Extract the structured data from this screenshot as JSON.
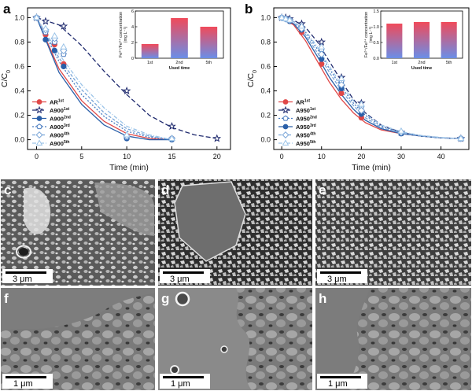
{
  "chart_data": [
    {
      "type": "line",
      "panel": "a",
      "xlabel": "Time (min)",
      "ylabel": "C/C",
      "ylabel_sub": "0",
      "xlim": [
        -1,
        21.5
      ],
      "ylim": [
        -0.08,
        1.08
      ],
      "xticks": [
        0,
        5,
        10,
        15,
        20
      ],
      "yticks": [
        0.0,
        0.2,
        0.4,
        0.6,
        0.8,
        1.0
      ],
      "legend_position": "bottom-left",
      "series": [
        {
          "name": "AR",
          "sup": "1st",
          "color": "#e04848",
          "marker": "circle",
          "dash": "",
          "x": [
            0,
            1,
            2,
            3,
            10,
            15
          ],
          "y": [
            1.0,
            0.86,
            0.78,
            0.62,
            0.02,
            0.01
          ],
          "fx": [
            0,
            2.5,
            5,
            7.5,
            10,
            12.5,
            15
          ],
          "fy": [
            1.0,
            0.58,
            0.32,
            0.15,
            0.05,
            0.01,
            0.0
          ]
        },
        {
          "name": "A900",
          "sup": "1st",
          "color": "#1f2a6e",
          "marker": "star",
          "dash": "6,3",
          "x": [
            0,
            1,
            3,
            10,
            15,
            20
          ],
          "y": [
            1.0,
            0.97,
            0.93,
            0.4,
            0.11,
            0.01
          ],
          "fx": [
            0,
            2.5,
            5,
            7.5,
            10,
            12.5,
            15,
            17.5,
            20
          ],
          "fy": [
            1.0,
            0.94,
            0.77,
            0.56,
            0.37,
            0.2,
            0.1,
            0.04,
            0.01
          ]
        },
        {
          "name": "A900",
          "sup": "2nd",
          "color": "#2a5fa8",
          "marker": "circle",
          "dash": "",
          "x": [
            0,
            1,
            2,
            3,
            10,
            15
          ],
          "y": [
            1.0,
            0.82,
            0.73,
            0.6,
            0.01,
            0.0
          ],
          "fx": [
            0,
            2.5,
            5,
            7.5,
            10,
            12.5,
            15
          ],
          "fy": [
            1.0,
            0.55,
            0.29,
            0.12,
            0.03,
            0.0,
            0.0
          ]
        },
        {
          "name": "A900",
          "sup": "3rd",
          "color": "#4a7cc0",
          "marker": "pentagon",
          "dash": "2,2",
          "x": [
            0,
            1,
            2,
            3,
            10,
            15
          ],
          "y": [
            1.0,
            0.88,
            0.8,
            0.7,
            0.02,
            0.01
          ],
          "fx": [
            0,
            2.5,
            5,
            7.5,
            10,
            12.5,
            15
          ],
          "fy": [
            1.0,
            0.64,
            0.37,
            0.19,
            0.07,
            0.02,
            0.0
          ]
        },
        {
          "name": "A900",
          "sup": "4th",
          "color": "#7aa6d8",
          "marker": "diamond",
          "dash": "4,2",
          "x": [
            0,
            1,
            2,
            3,
            10,
            15
          ],
          "y": [
            1.0,
            0.9,
            0.83,
            0.73,
            0.03,
            0.01
          ],
          "fx": [
            0,
            2.5,
            5,
            7.5,
            10,
            12.5,
            15
          ],
          "fy": [
            1.0,
            0.67,
            0.41,
            0.22,
            0.09,
            0.03,
            0.0
          ]
        },
        {
          "name": "A900",
          "sup": "5th",
          "color": "#9cc4e8",
          "marker": "triangle",
          "dash": "5,2,1,2",
          "x": [
            0,
            1,
            2,
            3,
            10,
            15
          ],
          "y": [
            1.0,
            0.91,
            0.85,
            0.76,
            0.04,
            0.01
          ],
          "fx": [
            0,
            2.5,
            5,
            7.5,
            10,
            12.5,
            15
          ],
          "fy": [
            1.0,
            0.7,
            0.45,
            0.26,
            0.11,
            0.04,
            0.0
          ]
        }
      ],
      "inset": {
        "type": "bar",
        "ylabel": "Fe²⁺/Fe³⁺ concentration",
        "yunit": "(mg L⁻¹)",
        "xlabel": "Used time",
        "categories": [
          "1st",
          "2nd",
          "5th"
        ],
        "values": [
          1.8,
          5.1,
          4.0
        ],
        "ylim": [
          0,
          6
        ],
        "yticks": [
          0,
          2,
          4,
          6
        ]
      }
    },
    {
      "type": "line",
      "panel": "b",
      "xlabel": "Time (min)",
      "ylabel": "C/C",
      "ylabel_sub": "0",
      "xlim": [
        -2,
        47
      ],
      "ylim": [
        -0.08,
        1.08
      ],
      "xticks": [
        0,
        10,
        20,
        30,
        40
      ],
      "yticks": [
        0.0,
        0.2,
        0.4,
        0.6,
        0.8,
        1.0
      ],
      "legend_position": "bottom-left",
      "series": [
        {
          "name": "AR",
          "sup": "1st",
          "color": "#e04848",
          "marker": "circle",
          "dash": "",
          "x": [
            0,
            1,
            2,
            5,
            10,
            15,
            20,
            30,
            45
          ],
          "y": [
            1.0,
            0.99,
            0.97,
            0.88,
            0.62,
            0.38,
            0.18,
            0.06,
            0.01
          ],
          "fx": [
            0,
            3,
            6,
            9,
            12,
            15,
            18,
            21,
            25,
            30,
            35,
            40,
            45
          ],
          "fy": [
            1.0,
            0.94,
            0.81,
            0.64,
            0.47,
            0.33,
            0.22,
            0.14,
            0.08,
            0.05,
            0.03,
            0.015,
            0.01
          ]
        },
        {
          "name": "A950",
          "sup": "1st",
          "color": "#1f2a6e",
          "marker": "star",
          "dash": "6,3",
          "x": [
            0,
            1,
            2,
            5,
            10,
            15,
            20,
            30,
            45
          ],
          "y": [
            1.0,
            1.0,
            0.99,
            0.95,
            0.8,
            0.51,
            0.3,
            0.06,
            0.01
          ],
          "fx": [
            0,
            3,
            6,
            9,
            12,
            15,
            18,
            21,
            25,
            30,
            35,
            40,
            45
          ],
          "fy": [
            1.0,
            0.98,
            0.92,
            0.8,
            0.64,
            0.48,
            0.33,
            0.22,
            0.12,
            0.06,
            0.03,
            0.015,
            0.01
          ]
        },
        {
          "name": "A950",
          "sup": "2nd",
          "color": "#4a7cc0",
          "marker": "pentagon",
          "dash": "2,2",
          "x": [
            0,
            1,
            2,
            5,
            10,
            15,
            20,
            30,
            45
          ],
          "y": [
            1.0,
            0.99,
            0.98,
            0.92,
            0.74,
            0.48,
            0.27,
            0.06,
            0.01
          ],
          "fx": [
            0,
            3,
            6,
            9,
            12,
            15,
            18,
            21,
            25,
            30,
            35,
            40,
            45
          ],
          "fy": [
            1.0,
            0.97,
            0.88,
            0.74,
            0.58,
            0.43,
            0.3,
            0.2,
            0.11,
            0.06,
            0.03,
            0.015,
            0.01
          ]
        },
        {
          "name": "A950",
          "sup": "3rd",
          "color": "#2a5fa8",
          "marker": "circle",
          "dash": "",
          "x": [
            0,
            1,
            2,
            5,
            10,
            15,
            20,
            30,
            45
          ],
          "y": [
            1.0,
            0.99,
            0.97,
            0.9,
            0.66,
            0.42,
            0.21,
            0.05,
            0.01
          ],
          "fx": [
            0,
            3,
            6,
            9,
            12,
            15,
            18,
            21,
            25,
            30,
            35,
            40,
            45
          ],
          "fy": [
            1.0,
            0.95,
            0.84,
            0.68,
            0.51,
            0.37,
            0.25,
            0.16,
            0.09,
            0.05,
            0.03,
            0.015,
            0.01
          ]
        },
        {
          "name": "A950",
          "sup": "4th",
          "color": "#7aa6d8",
          "marker": "diamond",
          "dash": "4,2",
          "x": [
            0,
            1,
            2,
            5,
            10,
            15,
            20,
            30,
            45
          ],
          "y": [
            1.0,
            0.99,
            0.98,
            0.91,
            0.7,
            0.45,
            0.24,
            0.06,
            0.01
          ],
          "fx": [
            0,
            3,
            6,
            9,
            12,
            15,
            18,
            21,
            25,
            30,
            35,
            40,
            45
          ],
          "fy": [
            1.0,
            0.96,
            0.86,
            0.71,
            0.55,
            0.4,
            0.28,
            0.18,
            0.1,
            0.055,
            0.03,
            0.015,
            0.01
          ]
        },
        {
          "name": "A950",
          "sup": "5th",
          "color": "#9cc4e8",
          "marker": "triangle",
          "dash": "5,2,1,2",
          "x": [
            0,
            1,
            2,
            5,
            10,
            15,
            20,
            30,
            45
          ],
          "y": [
            1.0,
            0.99,
            0.98,
            0.93,
            0.76,
            0.5,
            0.29,
            0.07,
            0.01
          ],
          "fx": [
            0,
            3,
            6,
            9,
            12,
            15,
            18,
            21,
            25,
            30,
            35,
            40,
            45
          ],
          "fy": [
            1.0,
            0.97,
            0.89,
            0.76,
            0.6,
            0.45,
            0.32,
            0.21,
            0.12,
            0.065,
            0.035,
            0.018,
            0.01
          ]
        }
      ],
      "inset": {
        "type": "bar",
        "ylabel": "Fe²⁺/Fe³⁺ concentration",
        "yunit": "(mg L⁻¹)",
        "xlabel": "Used time",
        "categories": [
          "1st",
          "2nd",
          "5th"
        ],
        "values": [
          1.1,
          1.15,
          1.15
        ],
        "ylim": [
          0,
          1.5
        ],
        "yticks": [
          0.0,
          0.5,
          1.0,
          1.5
        ]
      }
    }
  ],
  "micrographs": [
    {
      "letter": "c",
      "scale_bar": "3 μm"
    },
    {
      "letter": "d",
      "scale_bar": "3 μm"
    },
    {
      "letter": "e",
      "scale_bar": "3 μm"
    },
    {
      "letter": "f",
      "scale_bar": "1 μm"
    },
    {
      "letter": "g",
      "scale_bar": "1 μm"
    },
    {
      "letter": "h",
      "scale_bar": "1 μm"
    }
  ],
  "colors": {
    "bar_top": "#f04a5a",
    "bar_bottom": "#6a8ee8"
  }
}
